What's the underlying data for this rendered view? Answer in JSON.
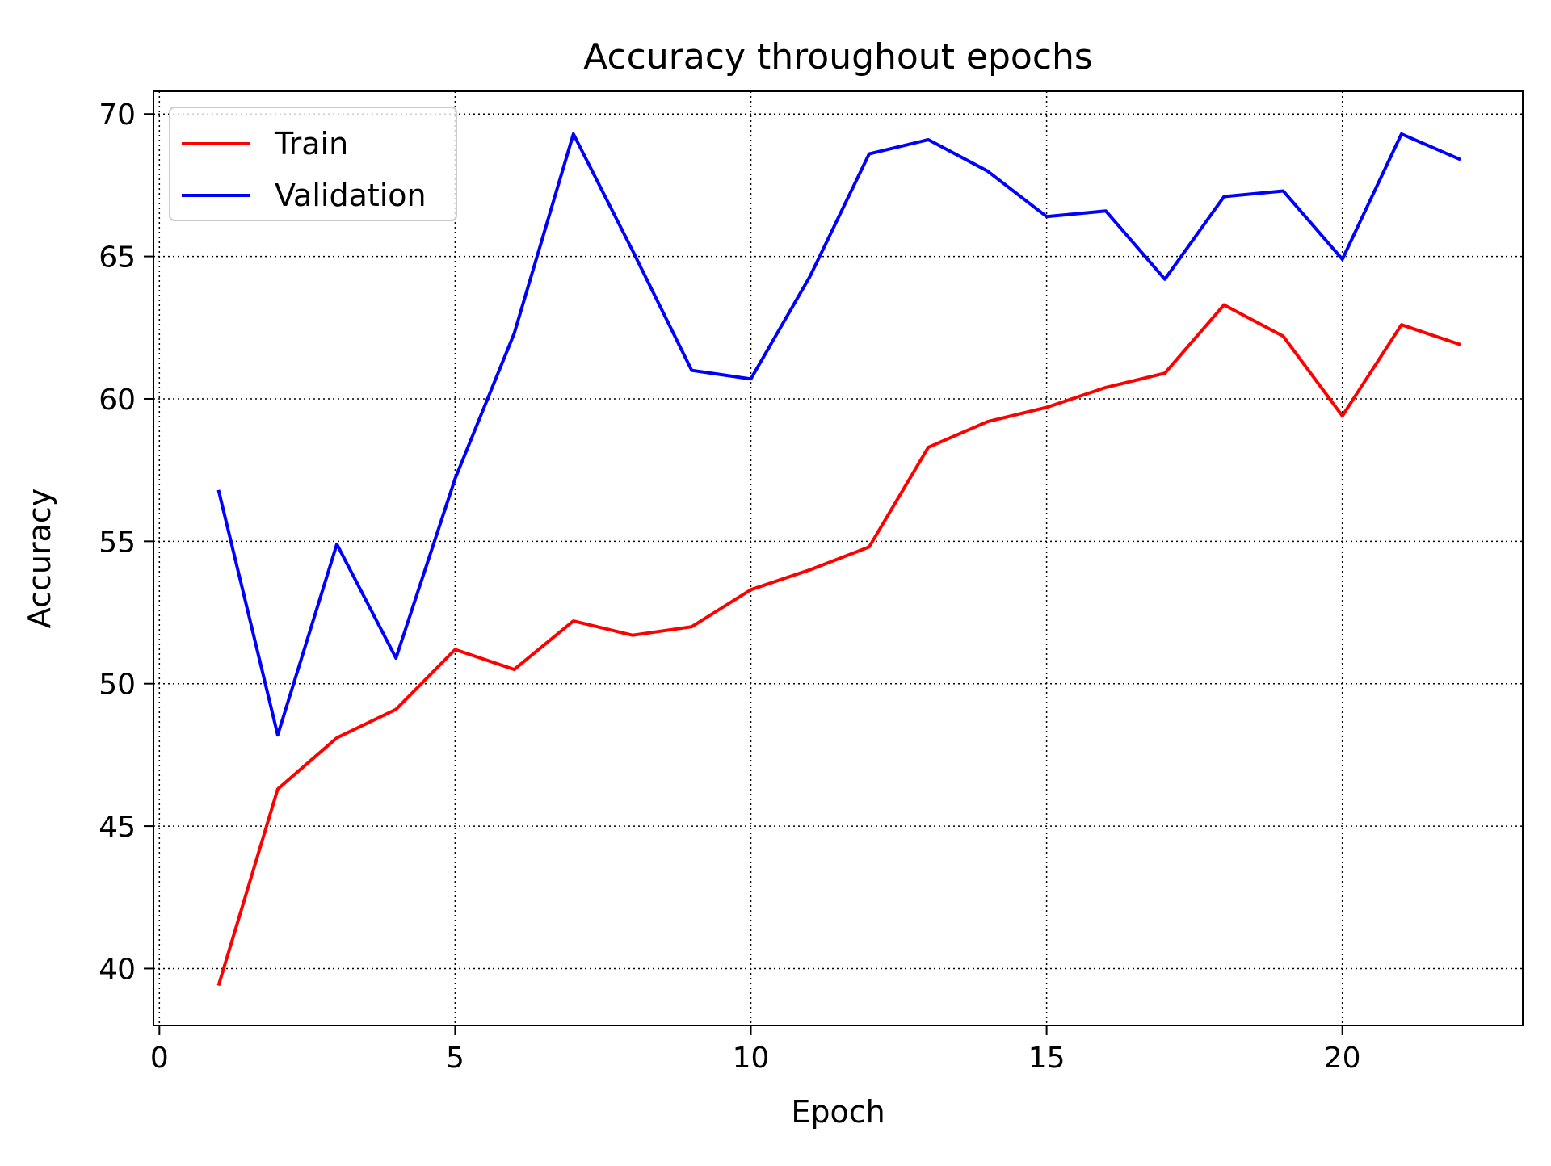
{
  "chart_data": {
    "type": "line",
    "title": "Accuracy throughout epochs",
    "xlabel": "Epoch",
    "ylabel": "Accuracy",
    "xlim": [
      -0.1,
      23.05
    ],
    "ylim": [
      38.0,
      70.8
    ],
    "grid": true,
    "legend_position": "top-left",
    "x_ticks": [
      0,
      5,
      10,
      15,
      20
    ],
    "y_ticks": [
      40,
      45,
      50,
      55,
      60,
      65,
      70
    ],
    "x": [
      1,
      2,
      3,
      4,
      5,
      6,
      7,
      8,
      9,
      10,
      11,
      12,
      13,
      14,
      15,
      16,
      17,
      18,
      19,
      20,
      21,
      22
    ],
    "series": [
      {
        "name": "Train",
        "color": "#ff0000",
        "values": [
          39.4,
          46.3,
          48.1,
          49.1,
          51.2,
          50.5,
          52.2,
          51.7,
          52.0,
          53.3,
          54.0,
          54.8,
          58.3,
          59.2,
          59.7,
          60.4,
          60.9,
          63.3,
          62.2,
          59.4,
          62.6,
          61.9
        ]
      },
      {
        "name": "Validation",
        "color": "#0000ff",
        "values": [
          56.8,
          48.2,
          54.9,
          50.9,
          57.2,
          62.3,
          69.3,
          65.2,
          61.0,
          60.7,
          64.3,
          68.6,
          69.1,
          68.0,
          66.4,
          66.6,
          64.2,
          67.1,
          67.3,
          64.9,
          69.3,
          68.4
        ]
      }
    ]
  }
}
